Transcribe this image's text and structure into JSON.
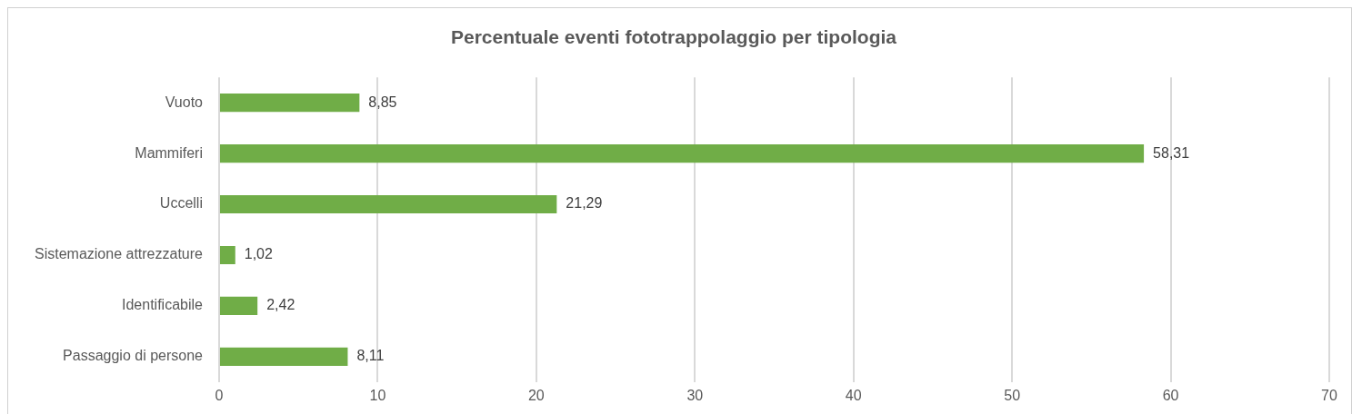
{
  "chart_data": {
    "type": "bar",
    "orientation": "horizontal",
    "title": "Percentuale eventi fototrappolaggio per tipologia",
    "categories": [
      "Vuoto",
      "Mammiferi",
      "Uccelli",
      "Sistemazione attrezzature",
      "Identificabile",
      "Passaggio di persone"
    ],
    "values": [
      8.85,
      58.31,
      21.29,
      1.02,
      2.42,
      8.11
    ],
    "value_labels": [
      "8,85",
      "58,31",
      "21,29",
      "1,02",
      "2,42",
      "8,11"
    ],
    "color": "#70ad47",
    "xlim": [
      0,
      70
    ],
    "xticks": [
      0,
      10,
      20,
      30,
      40,
      50,
      60,
      70
    ],
    "grid": "x",
    "legend": false
  }
}
